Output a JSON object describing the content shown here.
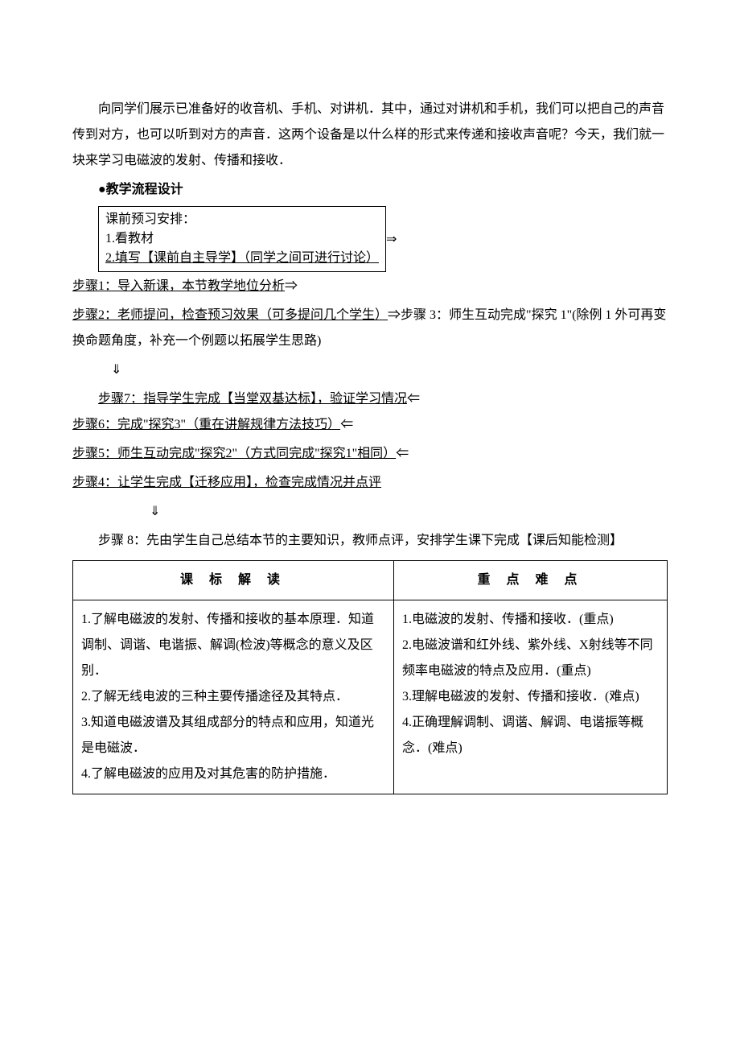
{
  "document": {
    "intro_para": "向同学们展示已准备好的收音机、手机、对讲机．其中，通过对讲机和手机，我们可以把自己的声音传到对方，也可以听到对方的声音．这两个设备是以什么样的形式来传递和接收声音呢？今天，我们就一块来学习电磁波的发射、传播和接收．",
    "section_header": "●教学流程设计",
    "prep_box": {
      "line1": "课前预习安排：",
      "line2": "1.看教材",
      "line3": "2.填写【课前自主导学】（同学之间可进行讨论）"
    },
    "arrow_right1": "⇒",
    "step1": "步骤1：导入新课，本节教学地位分析",
    "arrow_right2": "⇒",
    "step2": "步骤2：老师提问，检查预习效果（可多提问几个学生）",
    "arrow_right3": "⇒",
    "step3_prefix": "步骤 3：师生互动完成\"探究 1\"(除例 1 外可再变换命题角度，补充一个例题以拓展学生思路)",
    "down_arrow1": "⇓",
    "step7": "步骤7：指导学生完成【当堂双基达标】，验证学习情况",
    "left_arrow1": "⇐",
    "step6": "步骤6：完成\"探究3\"（重在讲解规律方法技巧）",
    "left_arrow2": "⇐",
    "step5": "步骤5：师生互动完成\"探究2\"（方式同完成\"探究1\"相同）",
    "left_arrow3": "⇐",
    "step4": "步骤4：让学生完成【迁移应用】，检查完成情况并点评",
    "down_arrow2": "⇓",
    "step8": "步骤 8：先由学生自己总结本节的主要知识，教师点评，安排学生课下完成【课后知能检测】",
    "table": {
      "header_left": "课 标 解 读",
      "header_right": "重 点 难 点",
      "left_cell": "1.了解电磁波的发射、传播和接收的基本原理．知道调制、调谐、电谐振、解调(检波)等概念的意义及区别．\n 2.了解无线电波的三种主要传播途径及其特点．\n3.知道电磁波谱及其组成部分的特点和应用，知道光是电磁波．\n4.了解电磁波的应用及对其危害的防护措施．",
      "right_cell": "1.电磁波的发射、传播和接收．(重点)\n2.电磁波谱和红外线、紫外线、X射线等不同频率电磁波的特点及应用．(重点)\n3.理解电磁波的发射、传播和接收．(难点)\n4.正确理解调制、调谐、解调、电谐振等概念．(难点)"
    },
    "colors": {
      "text": "#000000",
      "background": "#ffffff",
      "border": "#000000"
    },
    "typography": {
      "font_family": "SimSun",
      "font_size_pt": 12,
      "line_height": 2.0
    },
    "table_layout": {
      "column_widths": [
        "54%",
        "46%"
      ]
    }
  }
}
